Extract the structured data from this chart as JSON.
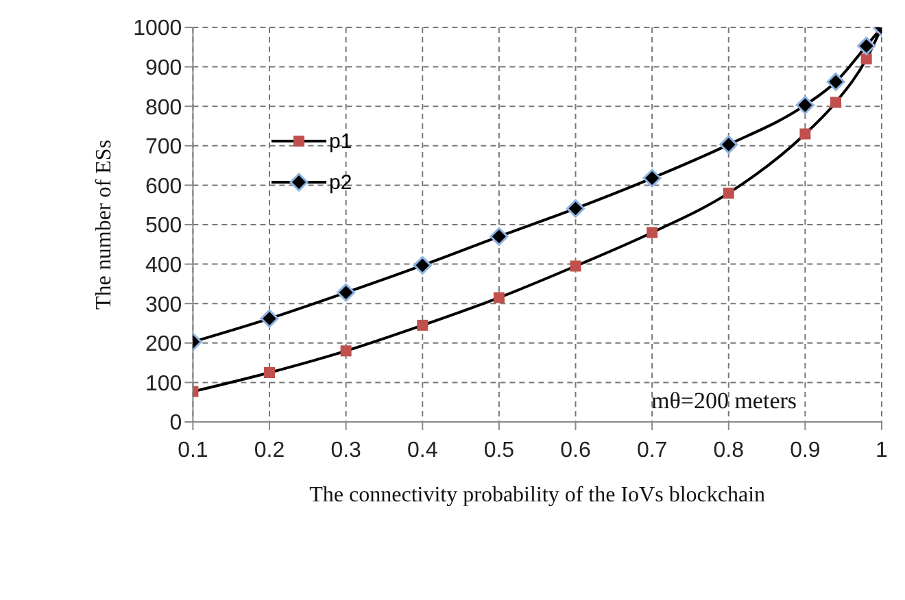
{
  "chart_data": {
    "type": "line",
    "xlabel": "The connectivity probability of the IoVs blockchain",
    "ylabel": "The number  of ESs",
    "annotations": [
      "mθ=200 meters"
    ],
    "x": [
      0.1,
      0.2,
      0.3,
      0.4,
      0.5,
      0.6,
      0.7,
      0.8,
      0.9,
      0.94,
      0.98,
      1
    ],
    "series": [
      {
        "name": "p1",
        "color": "#c0504d",
        "marker": "square",
        "values": [
          77,
          125,
          180,
          245,
          315,
          395,
          480,
          580,
          730,
          810,
          920,
          1000
        ]
      },
      {
        "name": "p2",
        "color": "#000000",
        "marker": "diamond",
        "values": [
          203,
          262,
          328,
          397,
          470,
          541,
          618,
          703,
          803,
          862,
          953,
          1000
        ]
      }
    ],
    "xlim": [
      0.1,
      1
    ],
    "xticks": [
      0.1,
      0.2,
      0.3,
      0.4,
      0.5,
      0.6,
      0.7,
      0.8,
      0.9,
      1
    ],
    "ylim": [
      0,
      1000
    ],
    "yticks": [
      0,
      100,
      200,
      300,
      400,
      500,
      600,
      700,
      800,
      900,
      1000
    ],
    "grid": true,
    "legend": "top left",
    "line_style": "solid"
  }
}
